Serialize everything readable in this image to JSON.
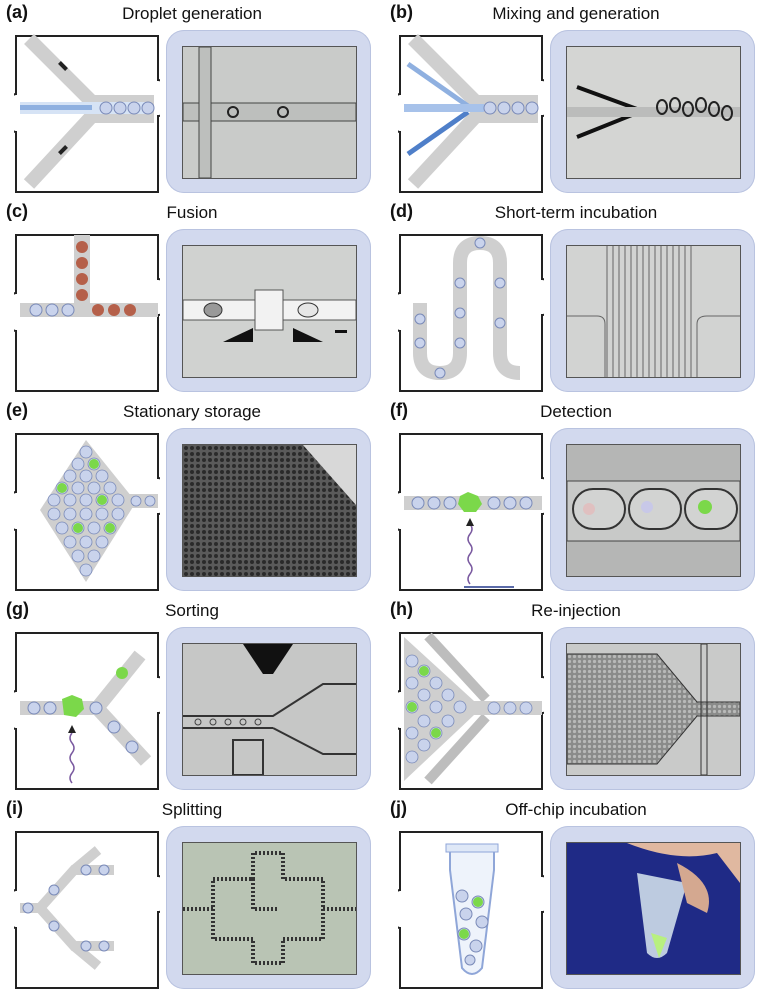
{
  "panels": [
    {
      "letter": "(a)",
      "title": "Droplet generation"
    },
    {
      "letter": "(b)",
      "title": "Mixing and generation"
    },
    {
      "letter": "(c)",
      "title": "Fusion"
    },
    {
      "letter": "(d)",
      "title": "Short-term incubation"
    },
    {
      "letter": "(e)",
      "title": "Stationary storage"
    },
    {
      "letter": "(f)",
      "title": "Detection"
    },
    {
      "letter": "(g)",
      "title": "Sorting"
    },
    {
      "letter": "(h)",
      "title": "Re-injection"
    },
    {
      "letter": "(i)",
      "title": "Splitting"
    },
    {
      "letter": "(j)",
      "title": "Off-chip incubation"
    }
  ],
  "colors": {
    "card_bg": "#d2d9ee",
    "channel": "#cfcfcf",
    "droplet": "#c9d3ec",
    "green": "#7bd84a",
    "red_droplet": "#b5604a"
  }
}
